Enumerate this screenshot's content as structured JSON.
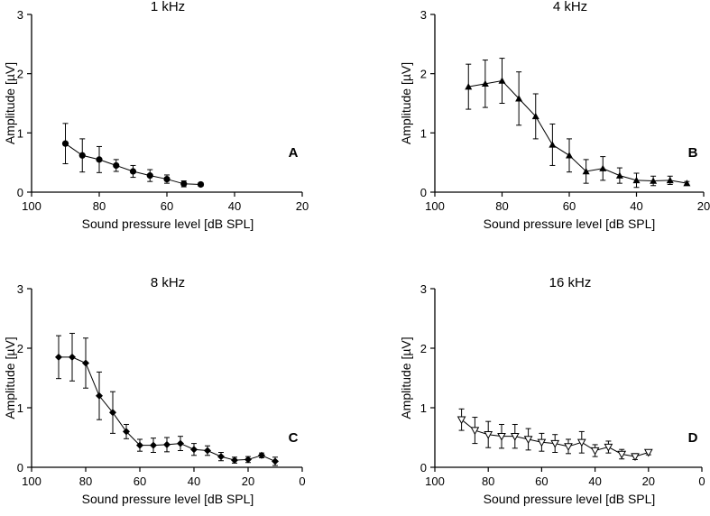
{
  "chart_data": [
    {
      "panel": "A",
      "type": "line",
      "title": "1 kHz",
      "xlabel": "Sound pressure level [dB SPL]",
      "ylabel": "Amplitude [µV]",
      "xlim": [
        100,
        20
      ],
      "ylim": [
        0,
        3
      ],
      "xticks": [
        "100",
        "80",
        "60",
        "40",
        "20"
      ],
      "yticks": [
        "0",
        "1",
        "2",
        "3"
      ],
      "marker": "circle",
      "series": [
        {
          "x": [
            90,
            85,
            80,
            75,
            70,
            65,
            60,
            55,
            50
          ],
          "y": [
            0.82,
            0.62,
            0.55,
            0.45,
            0.35,
            0.28,
            0.22,
            0.14,
            0.13
          ],
          "err": [
            0.34,
            0.28,
            0.22,
            0.1,
            0.1,
            0.1,
            0.07,
            0.05,
            0.03
          ]
        }
      ]
    },
    {
      "panel": "B",
      "type": "line",
      "title": "4 kHz",
      "xlabel": "Sound pressure level [dB SPL]",
      "ylabel": "Amplitude [µV]",
      "xlim": [
        100,
        20
      ],
      "ylim": [
        0,
        3
      ],
      "xticks": [
        "100",
        "80",
        "60",
        "40",
        "20"
      ],
      "yticks": [
        "0",
        "1",
        "2",
        "3"
      ],
      "marker": "triangle-up",
      "series": [
        {
          "x": [
            90,
            85,
            80,
            75,
            70,
            65,
            60,
            55,
            50,
            45,
            40,
            35,
            30,
            25
          ],
          "y": [
            1.78,
            1.83,
            1.88,
            1.58,
            1.28,
            0.8,
            0.62,
            0.35,
            0.4,
            0.28,
            0.2,
            0.19,
            0.2,
            0.15
          ],
          "err": [
            0.38,
            0.4,
            0.38,
            0.45,
            0.38,
            0.35,
            0.28,
            0.2,
            0.2,
            0.13,
            0.12,
            0.08,
            0.07,
            0.03
          ]
        }
      ]
    },
    {
      "panel": "C",
      "type": "line",
      "title": "8 kHz",
      "xlabel": "Sound pressure level [dB SPL]",
      "ylabel": "Amplitude [µV]",
      "xlim": [
        100,
        0
      ],
      "ylim": [
        0,
        3
      ],
      "xticks": [
        "100",
        "80",
        "60",
        "40",
        "20",
        "0"
      ],
      "yticks": [
        "0",
        "1",
        "2",
        "3"
      ],
      "marker": "diamond",
      "series": [
        {
          "x": [
            90,
            85,
            80,
            75,
            70,
            65,
            60,
            55,
            50,
            45,
            40,
            35,
            30,
            25,
            20,
            15,
            10
          ],
          "y": [
            1.85,
            1.85,
            1.75,
            1.2,
            0.92,
            0.6,
            0.37,
            0.37,
            0.38,
            0.4,
            0.3,
            0.28,
            0.18,
            0.12,
            0.13,
            0.2,
            0.1
          ],
          "err": [
            0.36,
            0.4,
            0.42,
            0.4,
            0.35,
            0.12,
            0.1,
            0.12,
            0.12,
            0.12,
            0.1,
            0.08,
            0.07,
            0.05,
            0.05,
            0.04,
            0.07
          ]
        }
      ]
    },
    {
      "panel": "D",
      "type": "line",
      "title": "16 kHz",
      "xlabel": "Sound pressure level [dB SPL]",
      "ylabel": "Amplitude [µV]",
      "xlim": [
        100,
        0
      ],
      "ylim": [
        0,
        3
      ],
      "xticks": [
        "100",
        "80",
        "60",
        "40",
        "20",
        "0"
      ],
      "yticks": [
        "0",
        "1",
        "2",
        "3"
      ],
      "marker": "triangle-down-open",
      "series": [
        {
          "x": [
            90,
            85,
            80,
            75,
            70,
            65,
            60,
            55,
            50,
            45,
            40,
            35,
            30,
            25,
            20
          ],
          "y": [
            0.8,
            0.62,
            0.55,
            0.52,
            0.52,
            0.47,
            0.42,
            0.4,
            0.35,
            0.42,
            0.28,
            0.34,
            0.22,
            0.18,
            0.25
          ],
          "err": [
            0.18,
            0.22,
            0.22,
            0.2,
            0.2,
            0.18,
            0.15,
            0.15,
            0.12,
            0.18,
            0.1,
            0.1,
            0.08,
            0.05,
            0.04
          ]
        }
      ]
    }
  ]
}
